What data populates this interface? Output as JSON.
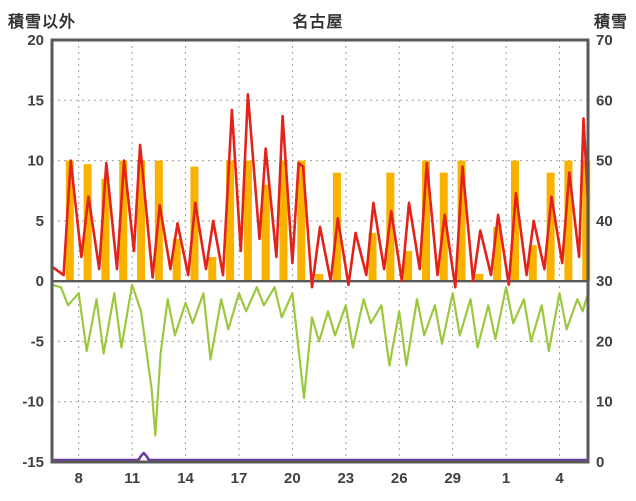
{
  "header": {
    "left_axis_title": "積雪以外",
    "chart_title": "名古屋",
    "right_axis_title": "積雪"
  },
  "chart_data": {
    "type": "line",
    "title": "名古屋",
    "left_axis": {
      "label": "積雪以外",
      "min": -15,
      "max": 20,
      "ticks": [
        20,
        15,
        10,
        5,
        0,
        -5,
        -10,
        -15
      ]
    },
    "right_axis": {
      "label": "積雪",
      "min": 0,
      "max": 70,
      "ticks": [
        70,
        60,
        50,
        40,
        30,
        20,
        10,
        0
      ]
    },
    "x_axis": {
      "min": 6.5,
      "max": 36.6,
      "gridline_days": [
        8,
        11,
        14,
        17,
        20,
        23,
        26,
        29,
        32,
        35
      ],
      "tick_labels": [
        "8",
        "11",
        "14",
        "17",
        "20",
        "23",
        "26",
        "29",
        "1",
        "4"
      ]
    },
    "colors": {
      "red": "#E32219",
      "green": "#9CC83F",
      "orange": "#F9B200",
      "purple": "#6A3DA2",
      "grid": "#A0A0A0",
      "axis": "#595959",
      "text": "#404040"
    },
    "grid": true,
    "legend": "none",
    "series": [
      {
        "name": "sunshine-bars",
        "type": "bar",
        "axis": "left",
        "color_key": "orange",
        "bar_width_days": 0.45,
        "data": [
          [
            7,
            10
          ],
          [
            8,
            9.7
          ],
          [
            9,
            8.5
          ],
          [
            10,
            10
          ],
          [
            11,
            10
          ],
          [
            12,
            10
          ],
          [
            13,
            3.5
          ],
          [
            14,
            9.5
          ],
          [
            15,
            2
          ],
          [
            16,
            10
          ],
          [
            17,
            10
          ],
          [
            18,
            8
          ],
          [
            19,
            10
          ],
          [
            20,
            10
          ],
          [
            21,
            0.6
          ],
          [
            22,
            9
          ],
          [
            23,
            0
          ],
          [
            24,
            4
          ],
          [
            25,
            9
          ],
          [
            26,
            2.5
          ],
          [
            27,
            10
          ],
          [
            28,
            9
          ],
          [
            29,
            10
          ],
          [
            30,
            0.6
          ],
          [
            31,
            4.5
          ],
          [
            32,
            10
          ],
          [
            33,
            3
          ],
          [
            34,
            9
          ],
          [
            35,
            10
          ],
          [
            36,
            10
          ]
        ]
      },
      {
        "name": "red-temperature-line",
        "type": "line",
        "axis": "left",
        "color_key": "red",
        "width": 2.6,
        "points": [
          [
            6.5,
            1.2
          ],
          [
            7.15,
            0.5
          ],
          [
            7.55,
            10.0
          ],
          [
            8.15,
            2.0
          ],
          [
            8.55,
            7.0
          ],
          [
            9.15,
            1.0
          ],
          [
            9.55,
            9.8
          ],
          [
            10.15,
            1.0
          ],
          [
            10.55,
            10.0
          ],
          [
            11.1,
            2.5
          ],
          [
            11.45,
            11.3
          ],
          [
            12.15,
            0.3
          ],
          [
            12.55,
            6.3
          ],
          [
            13.15,
            1.0
          ],
          [
            13.55,
            4.8
          ],
          [
            14.15,
            0.5
          ],
          [
            14.55,
            6.5
          ],
          [
            15.15,
            1.0
          ],
          [
            15.55,
            5.0
          ],
          [
            16.1,
            0.5
          ],
          [
            16.6,
            14.2
          ],
          [
            17.1,
            2.5
          ],
          [
            17.5,
            15.5
          ],
          [
            18.15,
            3.5
          ],
          [
            18.5,
            11.0
          ],
          [
            19.1,
            2.0
          ],
          [
            19.45,
            13.7
          ],
          [
            20.0,
            1.5
          ],
          [
            20.35,
            9.8
          ],
          [
            20.6,
            9.5
          ],
          [
            21.1,
            -0.5
          ],
          [
            21.55,
            4.5
          ],
          [
            22.15,
            0.0
          ],
          [
            22.55,
            5.2
          ],
          [
            23.15,
            -0.3
          ],
          [
            23.55,
            4.0
          ],
          [
            24.15,
            0.5
          ],
          [
            24.55,
            6.5
          ],
          [
            25.15,
            1.0
          ],
          [
            25.55,
            5.8
          ],
          [
            26.15,
            0.0
          ],
          [
            26.55,
            6.5
          ],
          [
            27.15,
            1.0
          ],
          [
            27.55,
            9.8
          ],
          [
            28.15,
            0.5
          ],
          [
            28.55,
            5.5
          ],
          [
            29.15,
            -0.5
          ],
          [
            29.55,
            9.5
          ],
          [
            30.15,
            0.0
          ],
          [
            30.55,
            4.2
          ],
          [
            31.15,
            0.5
          ],
          [
            31.55,
            5.5
          ],
          [
            32.15,
            -0.3
          ],
          [
            32.55,
            7.3
          ],
          [
            33.15,
            0.5
          ],
          [
            33.55,
            5.0
          ],
          [
            34.15,
            1.0
          ],
          [
            34.55,
            7.0
          ],
          [
            35.15,
            1.5
          ],
          [
            35.55,
            9.0
          ],
          [
            36.1,
            2.0
          ],
          [
            36.35,
            13.5
          ],
          [
            36.6,
            6.5
          ]
        ]
      },
      {
        "name": "green-line",
        "type": "line",
        "axis": "left",
        "color_key": "green",
        "width": 2.2,
        "points": [
          [
            6.5,
            -0.3
          ],
          [
            7.0,
            -0.5
          ],
          [
            7.4,
            -2.0
          ],
          [
            8.0,
            -1.0
          ],
          [
            8.45,
            -5.8
          ],
          [
            9.0,
            -1.5
          ],
          [
            9.4,
            -6.0
          ],
          [
            10.0,
            -1.0
          ],
          [
            10.4,
            -5.5
          ],
          [
            11.0,
            -0.3
          ],
          [
            11.5,
            -2.5
          ],
          [
            12.1,
            -9.0
          ],
          [
            12.3,
            -12.8
          ],
          [
            12.6,
            -6.0
          ],
          [
            13.0,
            -1.5
          ],
          [
            13.4,
            -4.5
          ],
          [
            14.0,
            -1.8
          ],
          [
            14.4,
            -3.5
          ],
          [
            15.0,
            -1.0
          ],
          [
            15.4,
            -6.5
          ],
          [
            16.0,
            -1.5
          ],
          [
            16.4,
            -4.0
          ],
          [
            17.0,
            -1.0
          ],
          [
            17.4,
            -2.5
          ],
          [
            18.0,
            -0.5
          ],
          [
            18.4,
            -2.0
          ],
          [
            19.0,
            -0.5
          ],
          [
            19.4,
            -3.0
          ],
          [
            20.0,
            -1.0
          ],
          [
            20.65,
            -9.7
          ],
          [
            21.1,
            -3.0
          ],
          [
            21.5,
            -5.0
          ],
          [
            22.0,
            -2.5
          ],
          [
            22.4,
            -4.5
          ],
          [
            23.0,
            -2.0
          ],
          [
            23.4,
            -5.5
          ],
          [
            24.0,
            -1.5
          ],
          [
            24.4,
            -3.5
          ],
          [
            25.0,
            -2.0
          ],
          [
            25.45,
            -7.0
          ],
          [
            26.0,
            -2.5
          ],
          [
            26.4,
            -7.0
          ],
          [
            27.0,
            -1.5
          ],
          [
            27.4,
            -4.5
          ],
          [
            28.0,
            -2.0
          ],
          [
            28.4,
            -5.2
          ],
          [
            29.0,
            -1.0
          ],
          [
            29.4,
            -4.5
          ],
          [
            30.0,
            -1.5
          ],
          [
            30.4,
            -5.5
          ],
          [
            31.0,
            -2.0
          ],
          [
            31.4,
            -4.8
          ],
          [
            32.0,
            -0.5
          ],
          [
            32.4,
            -3.5
          ],
          [
            33.0,
            -1.5
          ],
          [
            33.4,
            -5.0
          ],
          [
            34.0,
            -2.0
          ],
          [
            34.4,
            -5.8
          ],
          [
            35.0,
            -1.0
          ],
          [
            35.4,
            -4.0
          ],
          [
            36.0,
            -1.5
          ],
          [
            36.3,
            -2.5
          ],
          [
            36.6,
            -1.0
          ]
        ]
      },
      {
        "name": "purple-snow-depth-line",
        "type": "line",
        "axis": "right",
        "color_key": "purple",
        "width": 2.6,
        "points": [
          [
            6.5,
            0
          ],
          [
            11.35,
            0
          ],
          [
            11.5,
            1.0
          ],
          [
            11.65,
            1.5
          ],
          [
            11.8,
            1.0
          ],
          [
            11.95,
            0
          ],
          [
            36.6,
            0
          ]
        ]
      }
    ]
  }
}
